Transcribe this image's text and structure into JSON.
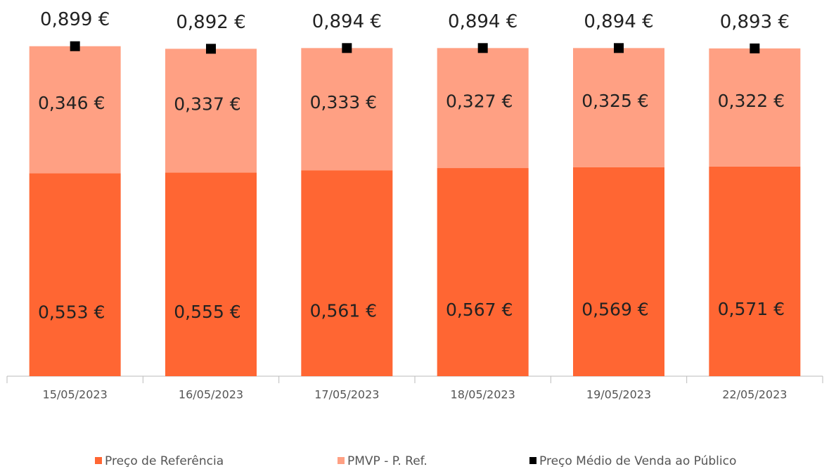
{
  "chart_data": {
    "type": "bar",
    "stacked": true,
    "categories": [
      "15/05/2023",
      "16/05/2023",
      "17/05/2023",
      "18/05/2023",
      "19/05/2023",
      "22/05/2023"
    ],
    "ylim": [
      0,
      1
    ],
    "series": [
      {
        "name": "Preço de Referência",
        "color": "#ff6633",
        "values": [
          0.553,
          0.555,
          0.561,
          0.567,
          0.569,
          0.571
        ],
        "value_labels": [
          "0,553 €",
          "0,555 €",
          "0,561 €",
          "0,567 €",
          "0,569 €",
          "0,571 €"
        ]
      },
      {
        "name": "PMVP - P. Ref.",
        "color": "#ffa083",
        "values": [
          0.346,
          0.337,
          0.333,
          0.327,
          0.325,
          0.322
        ],
        "value_labels": [
          "0,346 €",
          "0,337 €",
          "0,333 €",
          "0,327 €",
          "0,325 €",
          "0,322 €"
        ]
      },
      {
        "name": "Preço Médio de Venda ao Público",
        "color": "#000000",
        "type": "marker",
        "values": [
          0.899,
          0.892,
          0.894,
          0.894,
          0.894,
          0.893
        ],
        "value_labels": [
          "0,899 €",
          "0,892 €",
          "0,894 €",
          "0,894 €",
          "0,894 €",
          "0,893 €"
        ]
      }
    ]
  }
}
